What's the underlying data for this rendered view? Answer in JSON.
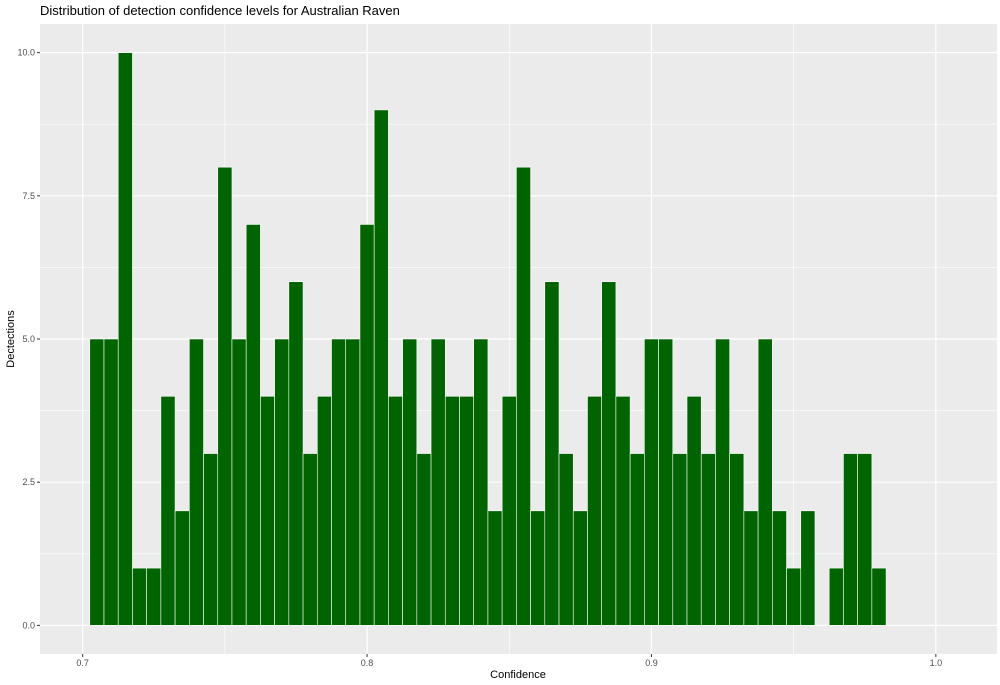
{
  "chart_data": {
    "type": "bar",
    "title": "Distribution of detection confidence levels for Australian Raven",
    "xlabel": "Confidence",
    "ylabel": "Dectections",
    "xlim": [
      0.685,
      1.0215
    ],
    "ylim": [
      -0.5,
      10.5
    ],
    "x_ticks": [
      0.7,
      0.8,
      0.9,
      1.0
    ],
    "x_tick_labels": [
      "0.7",
      "0.8",
      "0.9",
      "1.0"
    ],
    "y_ticks": [
      0,
      2.5,
      5,
      7.5,
      10
    ],
    "y_tick_labels": [
      "0.0",
      "2.5",
      "5.0",
      "7.5",
      "10.0"
    ],
    "bin_width": 0.005,
    "grid": true,
    "colors": {
      "bar_fill": "#006400",
      "bar_outline": "#ffffff",
      "panel_background": "#ebebeb",
      "grid": "#ffffff"
    },
    "x": [
      0.705,
      0.71,
      0.715,
      0.72,
      0.725,
      0.73,
      0.735,
      0.74,
      0.745,
      0.75,
      0.755,
      0.76,
      0.765,
      0.77,
      0.775,
      0.78,
      0.785,
      0.79,
      0.795,
      0.8,
      0.805,
      0.81,
      0.815,
      0.82,
      0.825,
      0.83,
      0.835,
      0.84,
      0.845,
      0.85,
      0.855,
      0.86,
      0.865,
      0.87,
      0.875,
      0.88,
      0.885,
      0.89,
      0.895,
      0.9,
      0.905,
      0.91,
      0.915,
      0.92,
      0.925,
      0.93,
      0.935,
      0.94,
      0.945,
      0.95,
      0.955,
      0.96,
      0.965,
      0.97,
      0.975,
      0.98
    ],
    "values": [
      5,
      5,
      10,
      1,
      1,
      4,
      2,
      5,
      3,
      8,
      5,
      7,
      4,
      5,
      6,
      3,
      4,
      5,
      5,
      7,
      9,
      4,
      5,
      3,
      5,
      4,
      4,
      5,
      2,
      4,
      8,
      2,
      6,
      3,
      2,
      4,
      6,
      4,
      3,
      5,
      5,
      3,
      4,
      3,
      5,
      3,
      2,
      5,
      2,
      1,
      2,
      0,
      1,
      3,
      3,
      1
    ]
  }
}
